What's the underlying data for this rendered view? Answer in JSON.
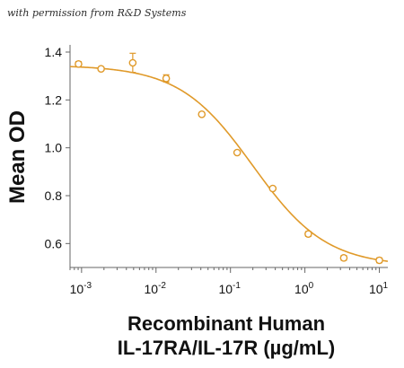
{
  "watermark": "with permission from R&D Systems",
  "chart_data": {
    "type": "scatter",
    "title": "",
    "ylabel": "Mean OD",
    "xlabel_line1": "Recombinant Human",
    "xlabel_line2": "IL-17RA/IL-17R (µg/mL)",
    "x_scale": "log",
    "xlim": [
      0.0007,
      13
    ],
    "ylim": [
      0.5,
      1.43
    ],
    "x_ticks": [
      {
        "value": 0.001,
        "base": "10",
        "exp": "-3"
      },
      {
        "value": 0.01,
        "base": "10",
        "exp": "-2"
      },
      {
        "value": 0.1,
        "base": "10",
        "exp": "-1"
      },
      {
        "value": 1,
        "base": "10",
        "exp": "0"
      },
      {
        "value": 10,
        "base": "10",
        "exp": "1"
      }
    ],
    "y_ticks": [
      {
        "value": 0.6,
        "label": "0.6"
      },
      {
        "value": 0.8,
        "label": "0.8"
      },
      {
        "value": 1.0,
        "label": "1.0"
      },
      {
        "value": 1.2,
        "label": "1.2"
      },
      {
        "value": 1.4,
        "label": "1.4"
      }
    ],
    "series": [
      {
        "color": "#e09a2a",
        "points": [
          {
            "x": 0.00091,
            "y": 1.35,
            "err": 0.01
          },
          {
            "x": 0.00183,
            "y": 1.33,
            "err": 0
          },
          {
            "x": 0.00487,
            "y": 1.355,
            "err": 0.04
          },
          {
            "x": 0.0137,
            "y": 1.29,
            "err": 0.015
          },
          {
            "x": 0.0412,
            "y": 1.14,
            "err": 0
          },
          {
            "x": 0.123,
            "y": 0.98,
            "err": 0
          },
          {
            "x": 0.37,
            "y": 0.83,
            "err": 0
          },
          {
            "x": 1.11,
            "y": 0.64,
            "err": 0.01
          },
          {
            "x": 3.33,
            "y": 0.54,
            "err": 0.01
          },
          {
            "x": 10.0,
            "y": 0.53,
            "err": 0.01
          }
        ],
        "fit": {
          "type": "4PL",
          "top": 1.345,
          "bottom": 0.505,
          "ec50": 0.2,
          "hill": 0.88
        }
      }
    ]
  }
}
